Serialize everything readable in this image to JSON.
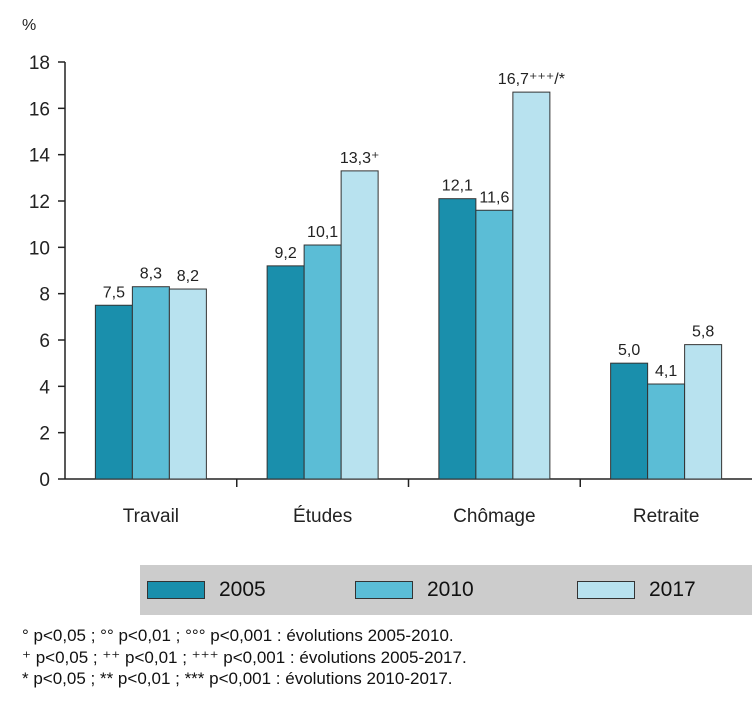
{
  "chart_data": {
    "type": "bar",
    "ylabel": "%",
    "ylim": [
      0,
      18
    ],
    "yticks": [
      0,
      2,
      4,
      6,
      8,
      10,
      12,
      14,
      16,
      18
    ],
    "categories": [
      "Travail",
      "Études",
      "Chômage",
      "Retraite"
    ],
    "series": [
      {
        "name": "2005",
        "color": "#1a8fac",
        "values": [
          7.5,
          9.2,
          12.1,
          5.0
        ],
        "labels": [
          "7,5",
          "9,2",
          "12,1",
          "5,0"
        ]
      },
      {
        "name": "2010",
        "color": "#5bbdd6",
        "values": [
          8.3,
          10.1,
          11.6,
          4.1
        ],
        "labels": [
          "8,3",
          "10,1",
          "11,6",
          "4,1"
        ]
      },
      {
        "name": "2017",
        "color": "#b8e2ef",
        "values": [
          8.2,
          13.3,
          16.7,
          5.8
        ],
        "labels": [
          "8,2",
          "13,3⁺",
          "16,7⁺⁺⁺/*",
          "5,8"
        ]
      }
    ],
    "grid": false,
    "legend_position": "bottom"
  },
  "notes": [
    "° p<0,05 ; °° p<0,01 ; °°° p<0,001 : évolutions 2005-2010.",
    "⁺ p<0,05 ; ⁺⁺ p<0,01 ; ⁺⁺⁺ p<0,001 : évolutions 2005-2017.",
    "* p<0,05 ; ** p<0,01 ; *** p<0,001 : évolutions 2010-2017."
  ]
}
